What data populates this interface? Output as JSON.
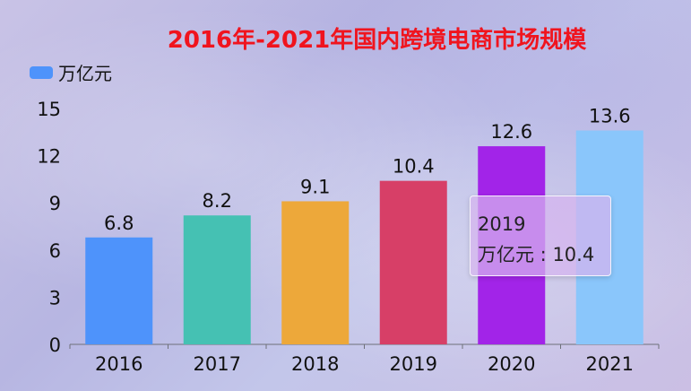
{
  "chart_data": {
    "type": "bar",
    "title": "2016年-2021年国内跨境电商市场规模",
    "categories": [
      "2016",
      "2017",
      "2018",
      "2019",
      "2020",
      "2021"
    ],
    "series": [
      {
        "name": "万亿元",
        "values": [
          6.8,
          8.2,
          9.1,
          10.4,
          12.6,
          13.6
        ]
      }
    ],
    "bar_colors": [
      "#4e93fb",
      "#45c1b3",
      "#eda83a",
      "#d73f67",
      "#a224e8",
      "#8ac6fb"
    ],
    "legend_color": "#4e93fb",
    "ylim": [
      0,
      15
    ],
    "yticks": [
      "0",
      "3",
      "6",
      "9",
      "12",
      "15"
    ],
    "legend_position": "top-left",
    "grid": false
  },
  "tooltip": {
    "category": "2019",
    "series_label": "万亿元",
    "value": "10.4"
  }
}
